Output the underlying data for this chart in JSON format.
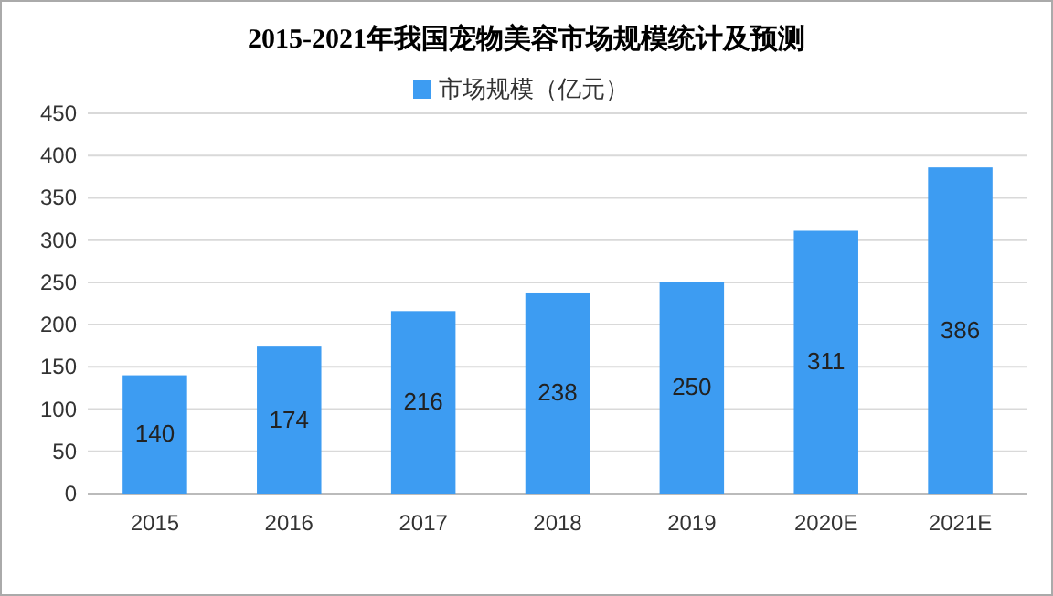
{
  "chart_data": {
    "type": "bar",
    "title": "2015-2021年我国宠物美容市场规模统计及预测",
    "categories": [
      "2015",
      "2016",
      "2017",
      "2018",
      "2019",
      "2020E",
      "2021E"
    ],
    "series": [
      {
        "name": "市场规模（亿元）",
        "color": "#3d9cf2",
        "values": [
          140,
          174,
          216,
          238,
          250,
          311,
          386
        ]
      }
    ],
    "ylim": [
      0,
      450
    ],
    "yticks": [
      0,
      50,
      100,
      150,
      200,
      250,
      300,
      350,
      400,
      450
    ],
    "grid": "y",
    "legend": "top",
    "data_labels": true
  }
}
